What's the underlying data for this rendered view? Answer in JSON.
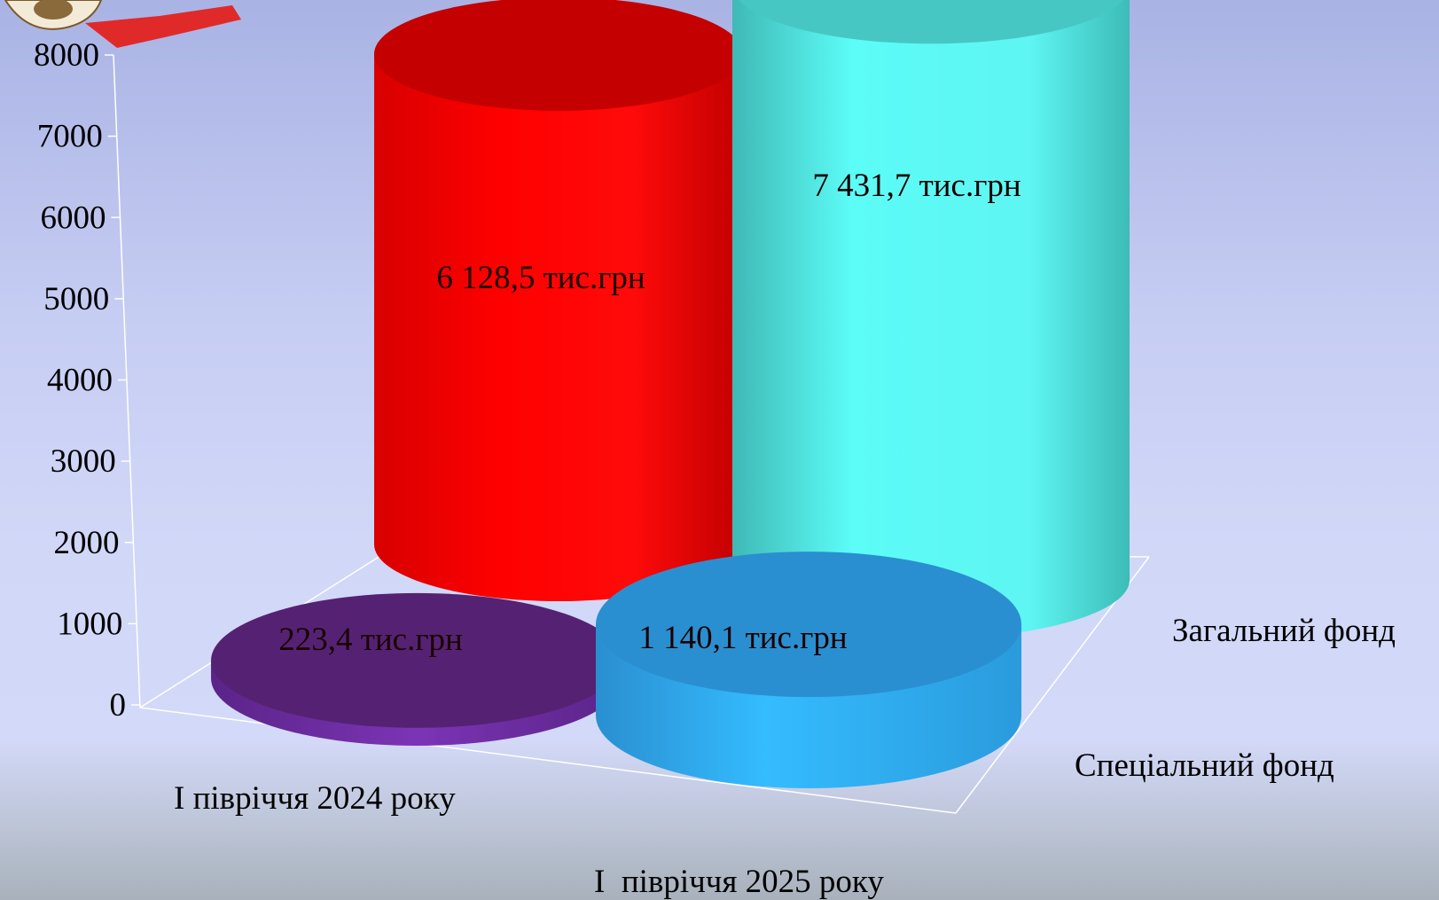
{
  "chart_data": {
    "type": "bar",
    "style": "3d-cylinder",
    "categories": [
      "І півріччя 2024 року",
      "І  півріччя 2025 року"
    ],
    "series": [
      {
        "name": "Загальний фонд",
        "values": [
          6128.5,
          7431.7
        ],
        "labels": [
          "6 128,5 тис.грн",
          "7 431,7 тис.грн"
        ],
        "colors": [
          "#ff0000",
          "#5cfcf7"
        ]
      },
      {
        "name": "Спеціальний фонд",
        "values": [
          223.4,
          1140.1
        ],
        "labels": [
          "223,4 тис.грн",
          "1 140,1 тис.грн"
        ],
        "colors": [
          "#5b2a8c",
          "#2a9fe6"
        ]
      }
    ],
    "yticks": [
      "0",
      "1000",
      "2000",
      "3000",
      "4000",
      "5000",
      "6000",
      "7000",
      "8000"
    ],
    "ylim": [
      0,
      8000
    ],
    "grid": false,
    "legend": "series labels on depth axis (right)"
  }
}
